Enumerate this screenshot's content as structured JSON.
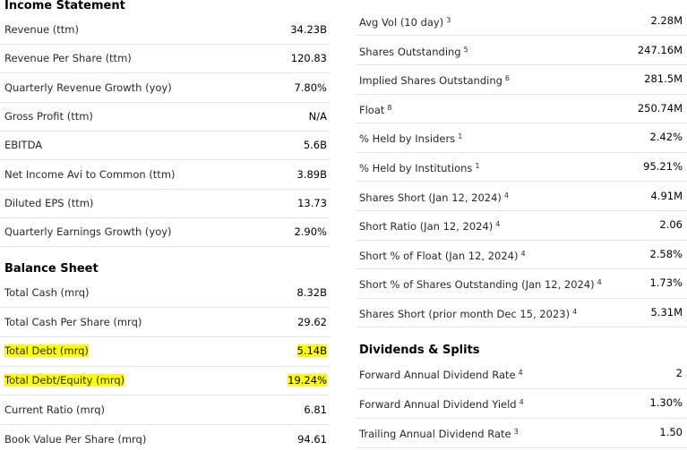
{
  "income_statement": {
    "title": "Income Statement",
    "rows": [
      {
        "label": "Revenue (ttm)",
        "value": "34.23B"
      },
      {
        "label": "Revenue Per Share (ttm)",
        "value": "120.83"
      },
      {
        "label": "Quarterly Revenue Growth (yoy)",
        "value": "7.80%"
      },
      {
        "label": "Gross Profit (ttm)",
        "value": "N/A"
      },
      {
        "label": "EBITDA",
        "value": "5.6B"
      },
      {
        "label": "Net Income Avi to Common (ttm)",
        "value": "3.89B"
      },
      {
        "label": "Diluted EPS (ttm)",
        "value": "13.73"
      },
      {
        "label": "Quarterly Earnings Growth (yoy)",
        "value": "2.90%"
      }
    ]
  },
  "balance_sheet": {
    "title": "Balance Sheet",
    "rows": [
      {
        "label": "Total Cash (mrq)",
        "value": "8.32B"
      },
      {
        "label": "Total Cash Per Share (mrq)",
        "value": "29.62"
      },
      {
        "label": "Total Debt (mrq)",
        "value": "5.14B",
        "highlighted": true
      },
      {
        "label": "Total Debt/Equity (mrq)",
        "value": "19.24%",
        "highlighted": true
      },
      {
        "label": "Current Ratio (mrq)",
        "value": "6.81"
      },
      {
        "label": "Book Value Per Share (mrq)",
        "value": "94.61"
      }
    ]
  },
  "share_statistics": {
    "rows": [
      {
        "label": "Avg Vol (10 day)",
        "note": "3",
        "value": "2.28M"
      },
      {
        "label": "Shares Outstanding",
        "note": "5",
        "value": "247.16M"
      },
      {
        "label": "Implied Shares Outstanding",
        "note": "6",
        "value": "281.5M"
      },
      {
        "label": "Float",
        "note": "8",
        "value": "250.74M"
      },
      {
        "label": "% Held by Insiders",
        "note": "1",
        "value": "2.42%"
      },
      {
        "label": "% Held by Institutions",
        "note": "1",
        "value": "95.21%"
      },
      {
        "label": "Shares Short (Jan 12, 2024)",
        "note": "4",
        "value": "4.91M"
      },
      {
        "label": "Short Ratio (Jan 12, 2024)",
        "note": "4",
        "value": "2.06"
      },
      {
        "label": "Short % of Float (Jan 12, 2024)",
        "note": "4",
        "value": "2.58%"
      },
      {
        "label": "Short % of Shares Outstanding (Jan 12, 2024)",
        "note": "4",
        "value": "1.73%"
      },
      {
        "label": "Shares Short (prior month Dec 15, 2023)",
        "note": "4",
        "value": "5.31M"
      }
    ]
  },
  "dividends_splits": {
    "title": "Dividends & Splits",
    "rows": [
      {
        "label": "Forward Annual Dividend Rate",
        "note": "4",
        "value": "2"
      },
      {
        "label": "Forward Annual Dividend Yield",
        "note": "4",
        "value": "1.30%"
      },
      {
        "label": "Trailing Annual Dividend Rate",
        "note": "3",
        "value": "1.50"
      }
    ]
  }
}
